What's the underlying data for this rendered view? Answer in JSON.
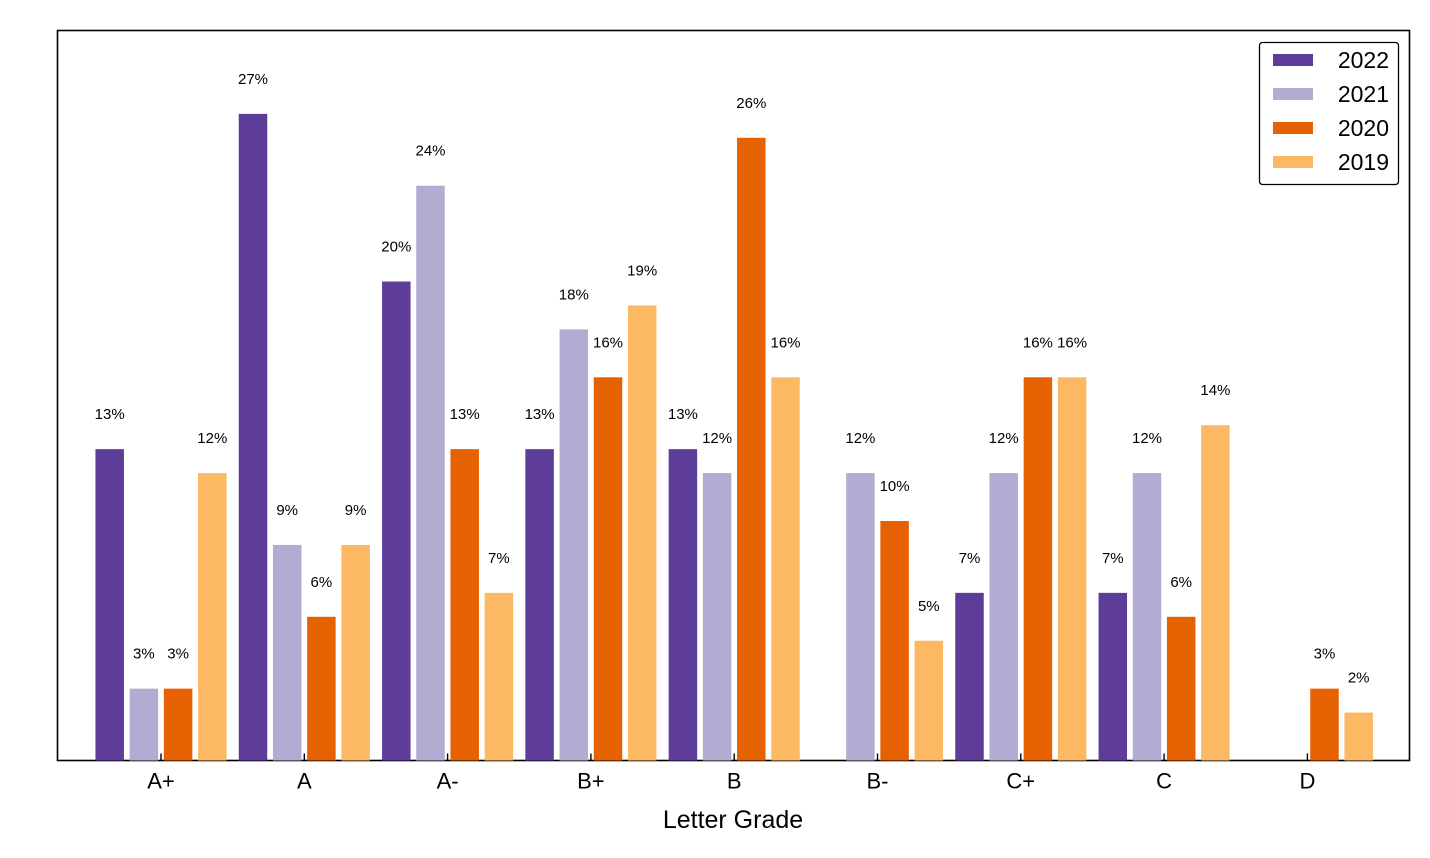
{
  "chart_data": {
    "type": "bar",
    "title": "",
    "xlabel": "Letter Grade",
    "ylabel": "",
    "categories": [
      "A+",
      "A",
      "A-",
      "B+",
      "B",
      "B-",
      "C+",
      "C",
      "D"
    ],
    "series": [
      {
        "name": "2022",
        "color": "#5e3c99",
        "values": [
          13,
          27,
          20,
          13,
          13,
          0,
          7,
          7,
          0
        ],
        "labels": [
          "13%",
          "27%",
          "20%",
          "13%",
          "13%",
          "",
          "7%",
          "7%",
          ""
        ]
      },
      {
        "name": "2021",
        "color": "#b2abd2",
        "values": [
          3,
          9,
          24,
          18,
          12,
          12,
          12,
          12,
          0
        ],
        "labels": [
          "3%",
          "9%",
          "24%",
          "18%",
          "12%",
          "12%",
          "12%",
          "12%",
          ""
        ]
      },
      {
        "name": "2020",
        "color": "#e66101",
        "values": [
          3,
          6,
          13,
          16,
          26,
          10,
          16,
          6,
          3
        ],
        "labels": [
          "3%",
          "6%",
          "13%",
          "16%",
          "26%",
          "10%",
          "16%",
          "6%",
          "3%"
        ]
      },
      {
        "name": "2019",
        "color": "#fdb863",
        "values": [
          12,
          9,
          7,
          19,
          16,
          5,
          16,
          14,
          2
        ],
        "labels": [
          "12%",
          "9%",
          "7%",
          "19%",
          "16%",
          "5%",
          "16%",
          "14%",
          "2%"
        ]
      }
    ],
    "ylim": [
      0,
      29
    ],
    "grid": false,
    "legend": "top-right",
    "yticks": "hidden"
  }
}
